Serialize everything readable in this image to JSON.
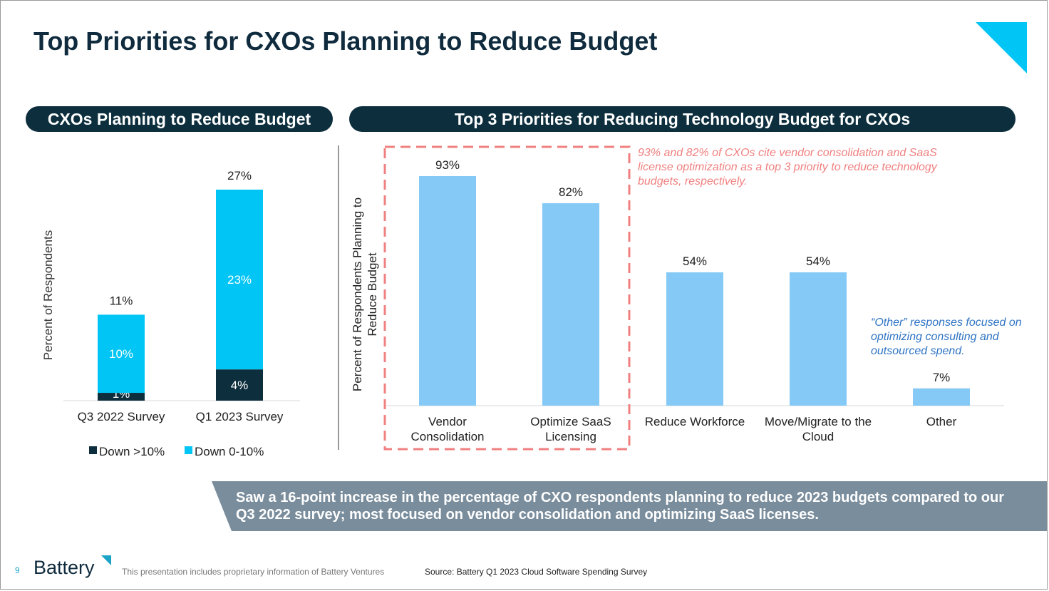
{
  "title": "Top Priorities for CXOs Planning to Reduce Budget",
  "colors": {
    "navy": "#0d2e3d",
    "cyan": "#00c5f5",
    "light_blue": "#85c9f7",
    "red_dash": "#f08080",
    "banner": "#7a8d9c"
  },
  "left_header": "CXOs Planning to Reduce Budget",
  "right_header": "Top 3 Priorities for Reducing Technology Budget for CXOs",
  "chart_data": [
    {
      "type": "bar",
      "stacked": true,
      "categories": [
        "Q3 2022 Survey",
        "Q1 2023 Survey"
      ],
      "series": [
        {
          "name": "Down >10%",
          "values": [
            1,
            4
          ],
          "labels": [
            "1%",
            "4%"
          ],
          "color": "#0d2e3d"
        },
        {
          "name": "Down 0-10%",
          "values": [
            10,
            23
          ],
          "labels": [
            "10%",
            "23%"
          ],
          "color": "#00c5f5"
        }
      ],
      "totals": [
        11,
        27
      ],
      "total_labels": [
        "11%",
        "27%"
      ],
      "ylabel": "Percent of Respondents",
      "ylim": [
        0,
        30
      ],
      "grid": false,
      "legend": "bottom"
    },
    {
      "type": "bar",
      "categories": [
        "Vendor\nConsolidation",
        "Optimize SaaS\nLicensing",
        "Reduce Workforce",
        "Move/Migrate to the\nCloud",
        "Other"
      ],
      "values": [
        93,
        82,
        54,
        54,
        7
      ],
      "value_labels": [
        "93%",
        "82%",
        "54%",
        "54%",
        "7%"
      ],
      "ylabel": "Percent of Respondents Planning to\nReduce Budget",
      "ylim": [
        0,
        100
      ],
      "grid": false,
      "color": "#85c9f7",
      "highlight": [
        "Vendor\nConsolidation",
        "Optimize SaaS\nLicensing"
      ]
    }
  ],
  "annotation_red": "93% and 82% of CXOs cite vendor consolidation and SaaS license optimization as a top 3 priority to reduce technology budgets, respectively.",
  "annotation_blue": "“Other” responses focused on optimizing consulting and outsourced spend.",
  "banner_text": "Saw a 16-point increase in the percentage of CXO respondents planning to reduce 2023 budgets compared to our Q3 2022 survey; most focused on vendor consolidation and optimizing SaaS licenses.",
  "footer": {
    "page_number": "9",
    "logo": "Battery",
    "disclaimer": "This presentation includes proprietary information of Battery Ventures",
    "source": "Source: Battery Q1 2023 Cloud Software Spending Survey"
  }
}
